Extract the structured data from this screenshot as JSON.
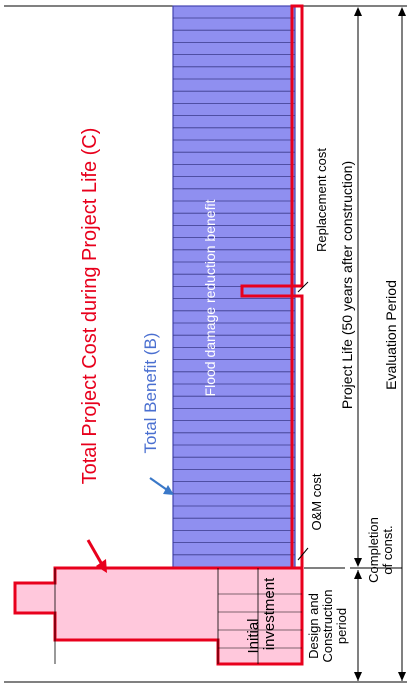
{
  "diagram": {
    "labels": {
      "total_cost": "Total Project Cost during Project Life (C)",
      "total_benefit": "Total Benefit (B)",
      "flood_benefit": "Flood damage reduction benefit",
      "replacement_cost": "Replacement cost",
      "om_cost": "O&M cost",
      "project_life": "Project Life (50 years after construction)",
      "evaluation_period": "Evaluation Period",
      "completion": [
        "Completion",
        "of const."
      ],
      "design_construction": [
        "Design and",
        "Construction",
        "period"
      ],
      "initial_investment": [
        "Initial",
        "investment"
      ]
    },
    "colors": {
      "cost_outline": "#e8001c",
      "benefit_fill": "#8f8ff0",
      "benefit_stroke": "#4444b0",
      "cost_fill": "#ffc8dc",
      "line": "#000000",
      "benefit_arrow": "#3a78c8"
    }
  }
}
